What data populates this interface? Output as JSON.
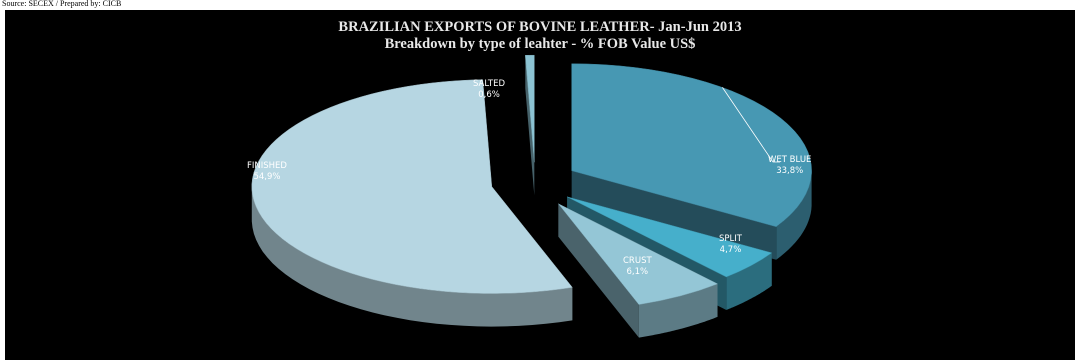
{
  "source": "Source: SECEX / Prepared by: CICB",
  "chart_data": {
    "type": "pie",
    "title": "BRAZILIAN EXPORTS OF BOVINE LEATHER- Jan-Jun 2013",
    "subtitle": "Breakdown by type of leahter - % FOB Value US$",
    "slices": [
      {
        "label": "WET BLUE",
        "value": 33.8,
        "value_label": "33,8%",
        "color": "#4798b3"
      },
      {
        "label": "SPLIT",
        "value": 4.7,
        "value_label": "4,7%",
        "color": "#46afcb"
      },
      {
        "label": "CRUST",
        "value": 6.1,
        "value_label": "6,1%",
        "color": "#94c6d6"
      },
      {
        "label": "FINISHED",
        "value": 54.9,
        "value_label": "54,9%",
        "color": "#b6d6e2"
      },
      {
        "label": "SALTED",
        "value": 0.6,
        "value_label": "0,6%",
        "color": "#8cc3d3"
      }
    ],
    "legend": "none",
    "style": "exploded 3d pie, dark background"
  }
}
